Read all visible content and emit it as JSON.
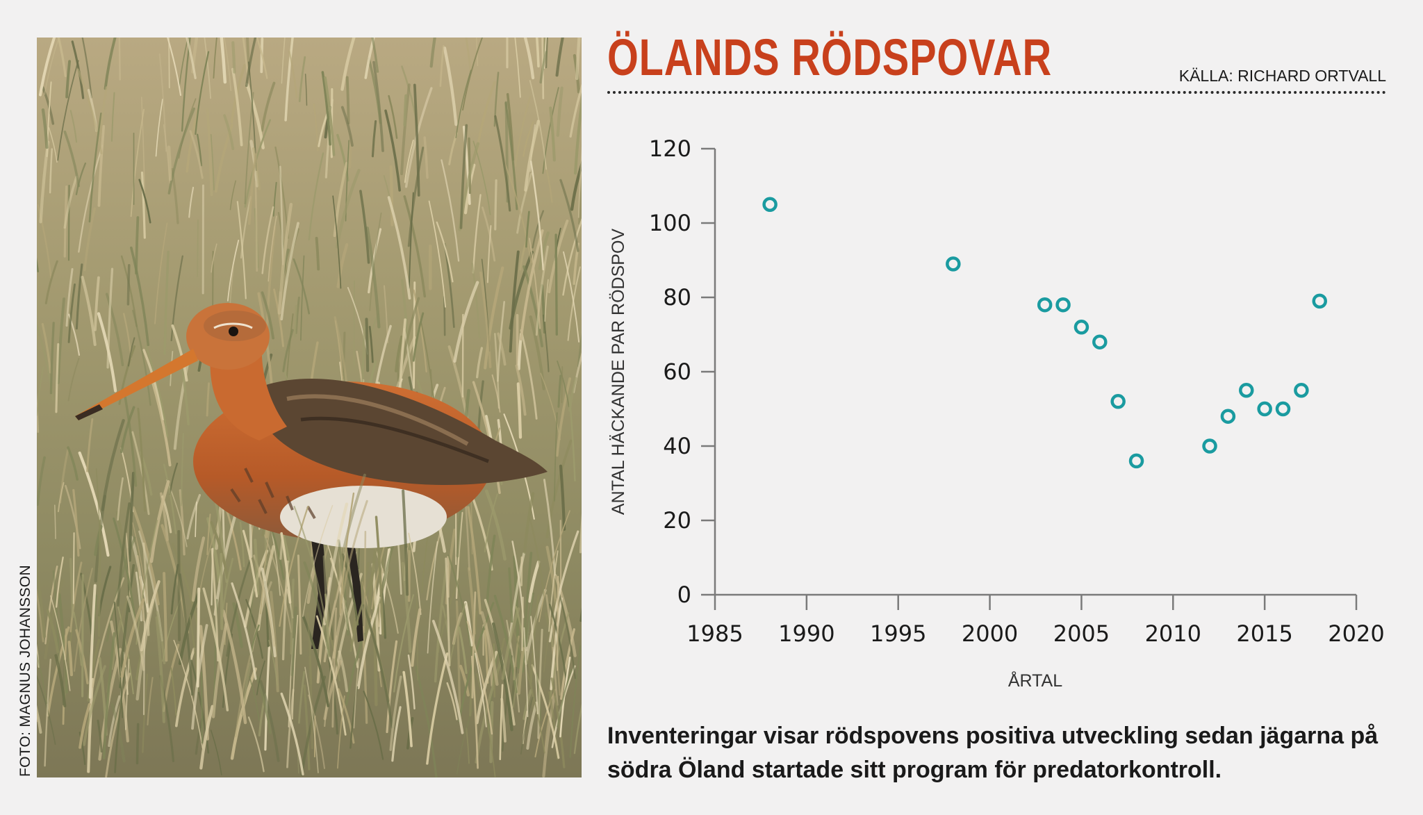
{
  "photo": {
    "credit": "FOTO: MAGNUS JOHANSSON",
    "subject_icon": "godwit-bird-photo",
    "colors": {
      "grass_light": "#b6a67d",
      "grass_dark": "#6f6e4c",
      "plumage": "#c2662f",
      "wing": "#5b4632",
      "beak": "#d4772e"
    }
  },
  "header": {
    "title": "ÖLANDS RÖDSPOVAR",
    "source": "KÄLLA: RICHARD ORTVALL"
  },
  "caption": "Inventeringar visar rödspovens positiva utveckling sedan jägarna på södra Öland startade sitt program för predatorkontroll.",
  "chart_data": {
    "type": "scatter",
    "title": "ÖLANDS RÖDSPOVAR",
    "xlabel": "ÅRTAL",
    "ylabel": "ANTAL HÄCKANDE PAR RÖDSPOV",
    "xlim": [
      1985,
      2020
    ],
    "ylim": [
      0,
      120
    ],
    "x_ticks": [
      1985,
      1990,
      1995,
      2000,
      2005,
      2010,
      2015,
      2020
    ],
    "y_ticks": [
      0,
      20,
      40,
      60,
      80,
      100,
      120
    ],
    "grid": false,
    "marker_color": "#1a9ba0",
    "points": [
      {
        "x": 1988,
        "y": 105
      },
      {
        "x": 1998,
        "y": 89
      },
      {
        "x": 2003,
        "y": 78
      },
      {
        "x": 2004,
        "y": 78
      },
      {
        "x": 2005,
        "y": 72
      },
      {
        "x": 2006,
        "y": 68
      },
      {
        "x": 2007,
        "y": 52
      },
      {
        "x": 2008,
        "y": 36
      },
      {
        "x": 2012,
        "y": 40
      },
      {
        "x": 2013,
        "y": 48
      },
      {
        "x": 2014,
        "y": 55
      },
      {
        "x": 2015,
        "y": 50
      },
      {
        "x": 2016,
        "y": 50
      },
      {
        "x": 2017,
        "y": 55
      },
      {
        "x": 2018,
        "y": 79
      }
    ]
  }
}
